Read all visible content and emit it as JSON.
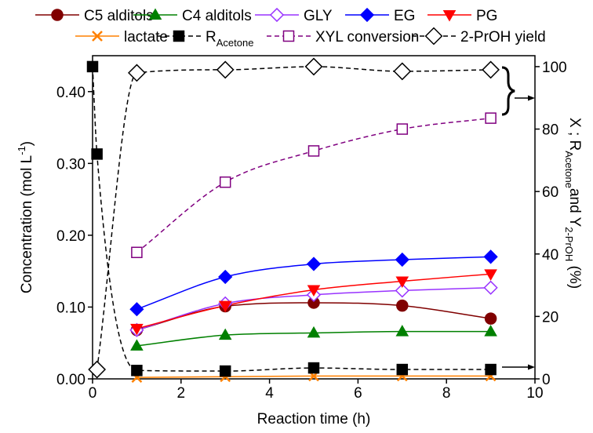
{
  "chart_data": {
    "type": "line",
    "x_label": "Reaction time (h)",
    "y_label": [
      "Concentration (mol L",
      "-1",
      ")"
    ],
    "y2_label": [
      "X ; R",
      "Acetone",
      "and Y",
      "2-PrOH",
      " (%)"
    ],
    "xlim": [
      0,
      10
    ],
    "xticks": [
      0,
      2,
      4,
      6,
      8,
      10
    ],
    "ylim": [
      0,
      0.45
    ],
    "yticks": [
      {
        "value": 0,
        "label": "0.00"
      },
      {
        "value": 0.1,
        "label": "0.10"
      },
      {
        "value": 0.2,
        "label": "0.20"
      },
      {
        "value": 0.3,
        "label": "0.30"
      },
      {
        "value": 0.4,
        "label": "0.40"
      }
    ],
    "y2lim": [
      0,
      103.5
    ],
    "y2ticks": [
      0,
      20,
      40,
      60,
      80,
      100
    ],
    "series": [
      {
        "name": "C5 alditols",
        "color": "#800000",
        "marker": "circle",
        "filled": true,
        "dashed": false,
        "x": [
          1,
          3,
          5,
          7,
          9
        ],
        "values": [
          0.068,
          0.101,
          0.106,
          0.102,
          0.084
        ]
      },
      {
        "name": "C4 alditols",
        "color": "#008000",
        "marker": "triangle-up",
        "filled": true,
        "dashed": false,
        "x": [
          1,
          3,
          5,
          7,
          9
        ],
        "values": [
          0.046,
          0.061,
          0.064,
          0.066,
          0.066
        ]
      },
      {
        "name": "GLY",
        "color": "#9933ff",
        "marker": "diamond",
        "filled": false,
        "dashed": false,
        "x": [
          1,
          3,
          5,
          7,
          9
        ],
        "values": [
          0.068,
          0.105,
          0.117,
          0.123,
          0.127
        ]
      },
      {
        "name": "EG",
        "color": "#0000ff",
        "marker": "diamond",
        "filled": true,
        "dashed": false,
        "x": [
          1,
          3,
          5,
          7,
          9
        ],
        "values": [
          0.097,
          0.142,
          0.16,
          0.166,
          0.17
        ]
      },
      {
        "name": "PG",
        "color": "#ff0000",
        "marker": "triangle-down",
        "filled": true,
        "dashed": false,
        "x": [
          1,
          3,
          5,
          7,
          9
        ],
        "values": [
          0.07,
          0.102,
          0.124,
          0.136,
          0.146
        ]
      },
      {
        "name": "lactate",
        "color": "#ff8000",
        "marker": "x",
        "filled": false,
        "dashed": false,
        "x": [
          1,
          3,
          5,
          7,
          9
        ],
        "values": [
          0.002,
          0.003,
          0.004,
          0.004,
          0.004
        ]
      },
      {
        "name": "R",
        "name_sub": "Acetone",
        "color": "#000000",
        "marker": "square",
        "filled": true,
        "dashed": true,
        "axis": "y2",
        "x": [
          0,
          0.1,
          1,
          3,
          5,
          7,
          9
        ],
        "values": [
          100,
          72,
          2.7,
          2.5,
          3.5,
          3,
          3
        ]
      },
      {
        "name": "XYL conversion",
        "color": "#800080",
        "marker": "square",
        "filled": false,
        "dashed": true,
        "axis": "y2",
        "x": [
          1,
          3,
          5,
          7,
          9
        ],
        "values": [
          40.5,
          63,
          73,
          80,
          83.5
        ]
      },
      {
        "name": "2-PrOH yield",
        "color": "#000000",
        "marker": "diamond",
        "filled": false,
        "dashed": true,
        "axis": "y2",
        "x": [
          0.1,
          1,
          3,
          5,
          7,
          9
        ],
        "values": [
          3,
          98,
          99,
          100,
          98.5,
          99
        ]
      }
    ]
  }
}
